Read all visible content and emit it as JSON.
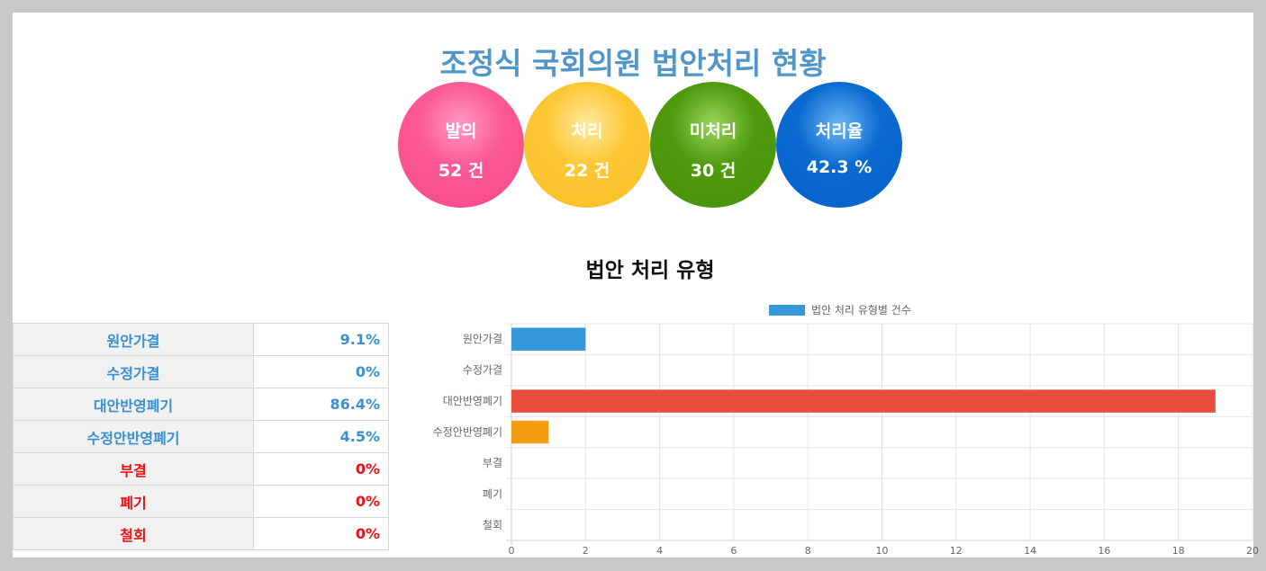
{
  "page": {
    "title": "조정식 국회의원 법안처리 현황",
    "subtitle": "법안 처리 유형"
  },
  "summary": [
    {
      "label": "발의",
      "value": "52 건",
      "color": "#f74a88"
    },
    {
      "label": "처리",
      "value": "22 건",
      "color": "#fcc02a"
    },
    {
      "label": "미처리",
      "value": "30 건",
      "color": "#489308"
    },
    {
      "label": "처리율",
      "value": "42.3 %",
      "color": "#0361c9"
    }
  ],
  "table": [
    {
      "label": "원안가결",
      "value": "9.1%",
      "status": "blue"
    },
    {
      "label": "수정가결",
      "value": "0%",
      "status": "blue"
    },
    {
      "label": "대안반영폐기",
      "value": "86.4%",
      "status": "blue"
    },
    {
      "label": "수정안반영폐기",
      "value": "4.5%",
      "status": "blue"
    },
    {
      "label": "부결",
      "value": "0%",
      "status": "red"
    },
    {
      "label": "폐기",
      "value": "0%",
      "status": "red"
    },
    {
      "label": "철회",
      "value": "0%",
      "status": "red"
    }
  ],
  "chart_data": {
    "type": "bar",
    "orientation": "horizontal",
    "categories": [
      "원안가결",
      "수정가결",
      "대안반영폐기",
      "수정안반영폐기",
      "부결",
      "폐기",
      "철회"
    ],
    "series": [
      {
        "name": "법안 처리 유형별 건수",
        "values": [
          2,
          0,
          19,
          1,
          0,
          0,
          0
        ],
        "colors": [
          "#3498db",
          "#3498db",
          "#e74c3c",
          "#f39c12",
          "#3498db",
          "#3498db",
          "#3498db"
        ]
      }
    ],
    "xlim": [
      0,
      20
    ],
    "xticks": [
      0,
      2,
      4,
      6,
      8,
      10,
      12,
      14,
      16,
      18,
      20
    ],
    "grid": true,
    "legend": "top-center",
    "legend_color": "#3498db"
  }
}
